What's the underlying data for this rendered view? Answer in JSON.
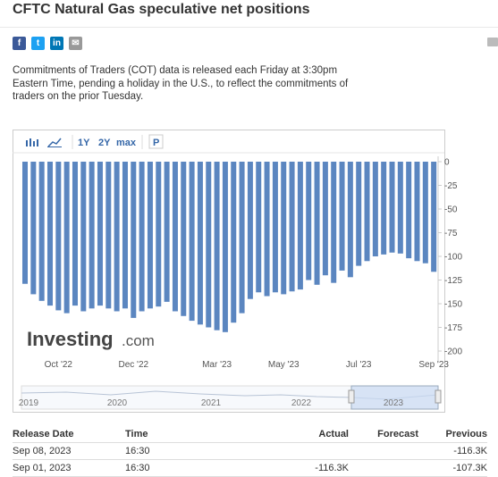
{
  "header": {
    "title": "CFTC Natural Gas speculative net positions",
    "description": [
      "Commitments of Traders (COT) data is released each Friday at 3:30pm",
      "Eastern Time, pending a holiday in the U.S., to reflect the commitments of",
      "traders on the prior Tuesday."
    ]
  },
  "toolbar": [
    "1Y",
    "2Y",
    "max",
    "P"
  ],
  "watermark": {
    "brand": "Investing",
    "suffix": ".com"
  },
  "chart_data": {
    "type": "bar",
    "color": "#5b86c0",
    "categories": [
      null,
      null,
      null,
      null,
      "Oct '22",
      null,
      null,
      null,
      null,
      null,
      null,
      null,
      null,
      "Dec '22",
      null,
      null,
      null,
      null,
      null,
      null,
      null,
      null,
      null,
      "Mar '23",
      null,
      null,
      null,
      null,
      null,
      null,
      null,
      "May '23",
      null,
      null,
      null,
      null,
      null,
      null,
      null,
      null,
      "Jul '23",
      null,
      null,
      null,
      null,
      null,
      null,
      null,
      null,
      "Sep '23"
    ],
    "values": [
      -129,
      -140,
      -147,
      -152,
      -157,
      -160,
      -152,
      -158,
      -155,
      -152,
      -155,
      -158,
      -155,
      -165,
      -158,
      -155,
      -153,
      -148,
      -158,
      -163,
      -168,
      -172,
      -175,
      -178,
      -180,
      -170,
      -160,
      -145,
      -138,
      -142,
      -138,
      -140,
      -137,
      -135,
      -125,
      -130,
      -120,
      -128,
      -115,
      -122,
      -110,
      -105,
      -100,
      -98,
      -96,
      -97,
      -102,
      -105,
      -107.3,
      -116.3
    ],
    "ylim": [
      -200,
      0
    ],
    "yticks": [
      0,
      -25,
      -50,
      -75,
      -100,
      -125,
      -150,
      -175,
      -200
    ],
    "navigator_labels": [
      "2019",
      "2020",
      "2021",
      "2022",
      "2023"
    ]
  },
  "table": {
    "columns": [
      "Release Date",
      "Time",
      "Actual",
      "Forecast",
      "Previous"
    ],
    "rows": [
      {
        "date": "Sep 08, 2023",
        "time": "16:30",
        "previous": "-116.3K"
      },
      {
        "date": "Sep 01, 2023",
        "time": "16:30",
        "actual": "-116.3K",
        "previous": "-107.3K"
      }
    ]
  }
}
